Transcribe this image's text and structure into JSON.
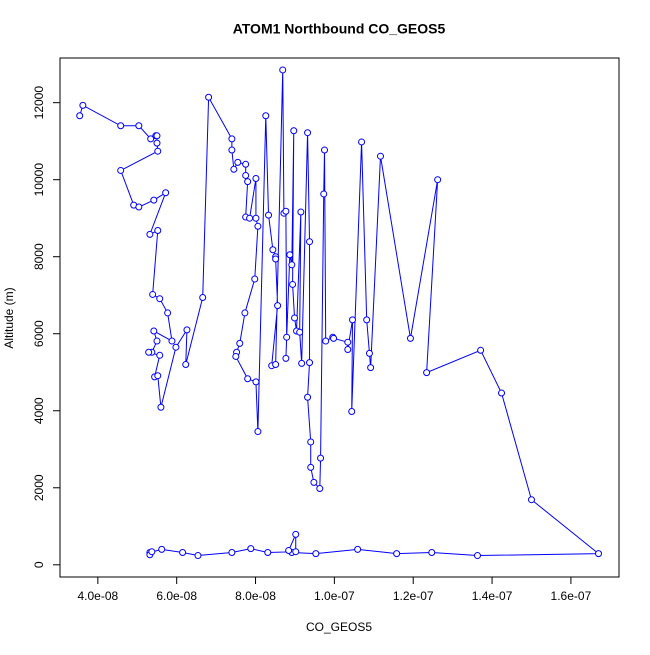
{
  "chart_data": {
    "type": "line",
    "title": "ATOM1 Northbound CO_GEOS5",
    "x_label": "CO_GEOS5",
    "y_label": "Altitude (m)",
    "color": "#0000ff",
    "markers": true,
    "x": [
      3.54e-08,
      3.62e-08,
      4.58e-08,
      5.04e-08,
      5.34e-08,
      5.47e-08,
      5.5e-08,
      5.5e-08,
      5.52e-08,
      4.58e-08,
      4.91e-08,
      5.04e-08,
      5.42e-08,
      5.72e-08,
      5.32e-08,
      5.52e-08,
      5.39e-08,
      5.57e-08,
      5.77e-08,
      5.88e-08,
      5.42e-08,
      5.5e-08,
      5.37e-08,
      5.29e-08,
      5.57e-08,
      5.44e-08,
      5.52e-08,
      5.6e-08,
      5.98e-08,
      6.26e-08,
      6.23e-08,
      6.66e-08,
      6.81e-08,
      7.4e-08,
      7.4e-08,
      7.45e-08,
      7.55e-08,
      7.75e-08,
      7.75e-08,
      7.8e-08,
      7.75e-08,
      7.85e-08,
      8.01e-08,
      8.01e-08,
      8.06e-08,
      7.98e-08,
      7.73e-08,
      7.6e-08,
      7.52e-08,
      7.5e-08,
      7.8e-08,
      8.01e-08,
      8.06e-08,
      8.26e-08,
      8.33e-08,
      8.44e-08,
      8.51e-08,
      8.51e-08,
      8.56e-08,
      8.41e-08,
      8.51e-08,
      8.69e-08,
      8.72e-08,
      8.77e-08,
      8.79e-08,
      8.77e-08,
      8.87e-08,
      8.92e-08,
      8.97e-08,
      8.94e-08,
      8.99e-08,
      9.04e-08,
      9.15e-08,
      9.12e-08,
      9.17e-08,
      9.32e-08,
      9.37e-08,
      9.37e-08,
      9.32e-08,
      9.4e-08,
      9.4e-08,
      9.48e-08,
      9.63e-08,
      9.65e-08,
      9.73e-08,
      9.75e-08,
      9.78e-08,
      9.96e-08,
      9.98e-08,
      1.034e-07,
      1.034e-07,
      1.046e-07,
      1.044e-07,
      1.069e-07,
      1.082e-07,
      1.089e-07,
      1.092e-07,
      1.117e-07,
      1.193e-07,
      1.262e-07,
      1.234e-07,
      1.371e-07,
      1.424e-07,
      1.5e-07,
      1.67e-07,
      1.363e-07,
      1.247e-07,
      1.158e-07,
      1.059e-07,
      9.53e-08,
      8.92e-08,
      8.84e-08,
      9.02e-08,
      9.02e-08,
      8.31e-08,
      7.88e-08,
      7.4e-08,
      6.54e-08,
      6.15e-08,
      5.62e-08,
      5.32e-08,
      5.32e-08,
      5.37e-08
    ],
    "values": [
      11660,
      11930,
      11400,
      11400,
      11060,
      11140,
      11140,
      10950,
      10740,
      10240,
      9340,
      9290,
      9470,
      9660,
      8580,
      8680,
      7020,
      6910,
      6540,
      5810,
      6070,
      5810,
      5520,
      5520,
      5440,
      4880,
      4910,
      4090,
      5650,
      6100,
      5200,
      6940,
      12140,
      11060,
      10770,
      10270,
      10450,
      10400,
      10110,
      9950,
      9030,
      9000,
      10030,
      9000,
      8790,
      7420,
      6540,
      5750,
      5520,
      5410,
      4830,
      4750,
      3460,
      11660,
      9080,
      8180,
      8000,
      7940,
      6730,
      5170,
      5200,
      12850,
      9130,
      9180,
      5910,
      5360,
      8050,
      7790,
      11270,
      7280,
      6410,
      6070,
      9160,
      6040,
      5230,
      11220,
      8390,
      5250,
      4350,
      3190,
      2530,
      2140,
      1980,
      2770,
      9630,
      10770,
      5810,
      5910,
      5880,
      5780,
      5590,
      6360,
      3980,
      10980,
      6360,
      5490,
      5120,
      10610,
      5880,
      10000,
      4990,
      5570,
      4460,
      1690,
      290,
      240,
      320,
      290,
      400,
      290,
      320,
      370,
      790,
      340,
      320,
      420,
      320,
      240,
      320,
      400,
      320,
      260,
      340
    ],
    "xlim": [
      3.04e-08,
      1.722e-07
    ],
    "ylim": [
      -317,
      13160
    ],
    "xticks": [
      {
        "value": 4e-08,
        "label": "4.0e-08"
      },
      {
        "value": 6e-08,
        "label": "6.0e-08"
      },
      {
        "value": 8e-08,
        "label": "8.0e-08"
      },
      {
        "value": 1e-07,
        "label": "1.0e-07"
      },
      {
        "value": 1.2e-07,
        "label": "1.2e-07"
      },
      {
        "value": 1.4e-07,
        "label": "1.4e-07"
      },
      {
        "value": 1.6e-07,
        "label": "1.6e-07"
      }
    ],
    "yticks": [
      0,
      2000,
      4000,
      6000,
      8000,
      10000,
      12000
    ]
  }
}
